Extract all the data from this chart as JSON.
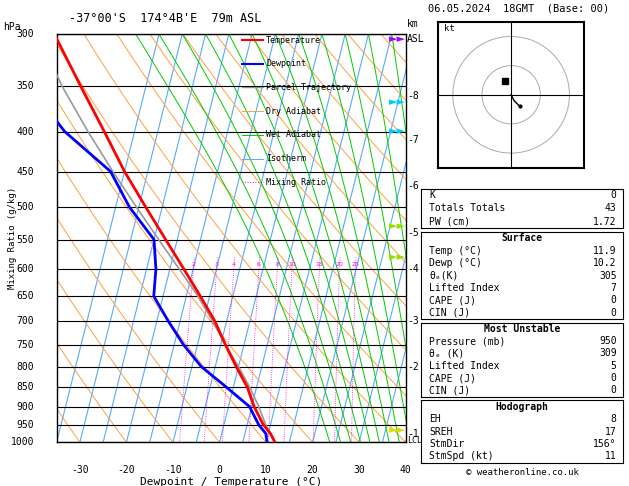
{
  "title_left": "-37°00'S  174°4B'E  79m ASL",
  "title_right": "06.05.2024  18GMT  (Base: 00)",
  "xlabel": "Dewpoint / Temperature (°C)",
  "pressure_levels": [
    300,
    350,
    400,
    450,
    500,
    550,
    600,
    650,
    700,
    750,
    800,
    850,
    900,
    950,
    1000
  ],
  "pressure_labels": [
    "300",
    "350",
    "400",
    "450",
    "500",
    "550",
    "600",
    "650",
    "700",
    "750",
    "800",
    "850",
    "900",
    "950",
    "1000"
  ],
  "temp_xlim": [
    -35,
    40
  ],
  "temp_xticks": [
    -30,
    -20,
    -10,
    0,
    10,
    20,
    30,
    40
  ],
  "km_ticks": [
    1,
    2,
    3,
    4,
    5,
    6,
    7,
    8
  ],
  "km_pressures": [
    975,
    800,
    700,
    600,
    540,
    470,
    410,
    360
  ],
  "mixing_ratio_lines": [
    2,
    3,
    4,
    6,
    8,
    10,
    15,
    20,
    25
  ],
  "isotherm_temps": [
    -35,
    -30,
    -25,
    -20,
    -15,
    -10,
    -5,
    0,
    5,
    10,
    15,
    20,
    25,
    30,
    35,
    40
  ],
  "isotherm_color": "#55AAFF",
  "dry_adiabat_color": "#FFA040",
  "wet_adiabat_color": "#00CC00",
  "temperature_profile": {
    "pressure": [
      1000,
      975,
      950,
      900,
      850,
      800,
      750,
      700,
      650,
      600,
      550,
      500,
      450,
      400,
      350,
      300
    ],
    "temp": [
      11.9,
      10.5,
      8.5,
      5.5,
      3.0,
      -0.5,
      -4.0,
      -7.5,
      -12.0,
      -17.0,
      -22.5,
      -28.5,
      -35.0,
      -41.5,
      -49.0,
      -57.5
    ]
  },
  "dewpoint_profile": {
    "pressure": [
      1000,
      975,
      950,
      900,
      850,
      800,
      750,
      700,
      650,
      600,
      550,
      500,
      450,
      400,
      350,
      300
    ],
    "temp": [
      10.2,
      9.5,
      7.5,
      4.5,
      -1.5,
      -8.0,
      -13.0,
      -17.5,
      -22.0,
      -23.0,
      -25.0,
      -32.0,
      -38.0,
      -50.0,
      -60.0,
      -65.0
    ]
  },
  "parcel_profile": {
    "pressure": [
      1000,
      975,
      950,
      900,
      850,
      800,
      750,
      700,
      650,
      600,
      550,
      500,
      450,
      400,
      350,
      300
    ],
    "temp": [
      11.9,
      10.5,
      9.0,
      6.5,
      3.5,
      0.0,
      -4.0,
      -8.0,
      -12.5,
      -18.0,
      -24.0,
      -30.5,
      -37.5,
      -45.0,
      -53.0,
      -61.0
    ]
  },
  "lcl_pressure": 995,
  "skew_factor": 22,
  "bg_color": "#FFFFFF"
}
